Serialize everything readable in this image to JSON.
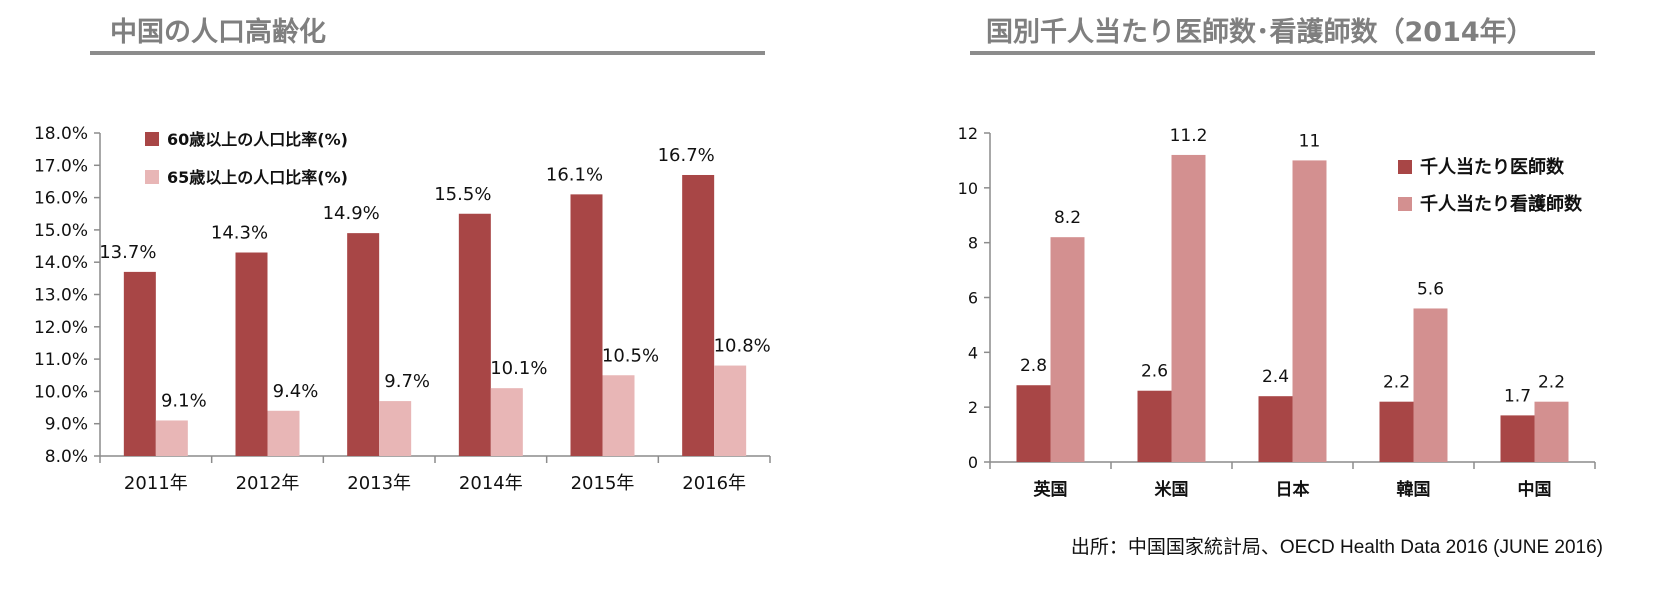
{
  "source_note": "出所：中国国家統計局、OECD Health Data 2016 (JUNE 2016)",
  "colors": {
    "dark": "#a84646",
    "light_left": "#e8b6b6",
    "light_right": "#d39090",
    "title": "#7f7f7f"
  },
  "chart_data": [
    {
      "type": "bar",
      "title": "中国の人口高齢化",
      "categories": [
        "2011年",
        "2012年",
        "2013年",
        "2014年",
        "2015年",
        "2016年"
      ],
      "series": [
        {
          "name": "60歳以上の人口比率(%)",
          "values": [
            13.7,
            14.3,
            14.9,
            15.5,
            16.1,
            16.7
          ],
          "labels": [
            "13.7%",
            "14.3%",
            "14.9%",
            "15.5%",
            "16.1%",
            "16.7%"
          ]
        },
        {
          "name": "65歳以上の人口比率(%)",
          "values": [
            9.1,
            9.4,
            9.7,
            10.1,
            10.5,
            10.8
          ],
          "labels": [
            "9.1%",
            "9.4%",
            "9.7%",
            "10.1%",
            "10.5%",
            "10.8%"
          ]
        }
      ],
      "ylim": [
        8,
        18
      ],
      "yticks": [
        "8.0%",
        "9.0%",
        "10.0%",
        "11.0%",
        "12.0%",
        "13.0%",
        "14.0%",
        "15.0%",
        "16.0%",
        "17.0%",
        "18.0%"
      ],
      "legend": "top-left",
      "grid": false
    },
    {
      "type": "bar",
      "title": "国別千人当たり医師数･看護師数（2014年）",
      "categories": [
        "英国",
        "米国",
        "日本",
        "韓国",
        "中国"
      ],
      "series": [
        {
          "name": "千人当たり医師数",
          "values": [
            2.8,
            2.6,
            2.4,
            2.2,
            1.7
          ],
          "labels": [
            "2.8",
            "2.6",
            "2.4",
            "2.2",
            "1.7"
          ]
        },
        {
          "name": "千人当たり看護師数",
          "values": [
            8.2,
            11.2,
            11,
            5.6,
            2.2
          ],
          "labels": [
            "8.2",
            "11.2",
            "11",
            "5.6",
            "2.2"
          ]
        }
      ],
      "ylim": [
        0,
        12
      ],
      "yticks": [
        "0",
        "2",
        "4",
        "6",
        "8",
        "10",
        "12"
      ],
      "legend": "top-right",
      "grid": false
    }
  ]
}
